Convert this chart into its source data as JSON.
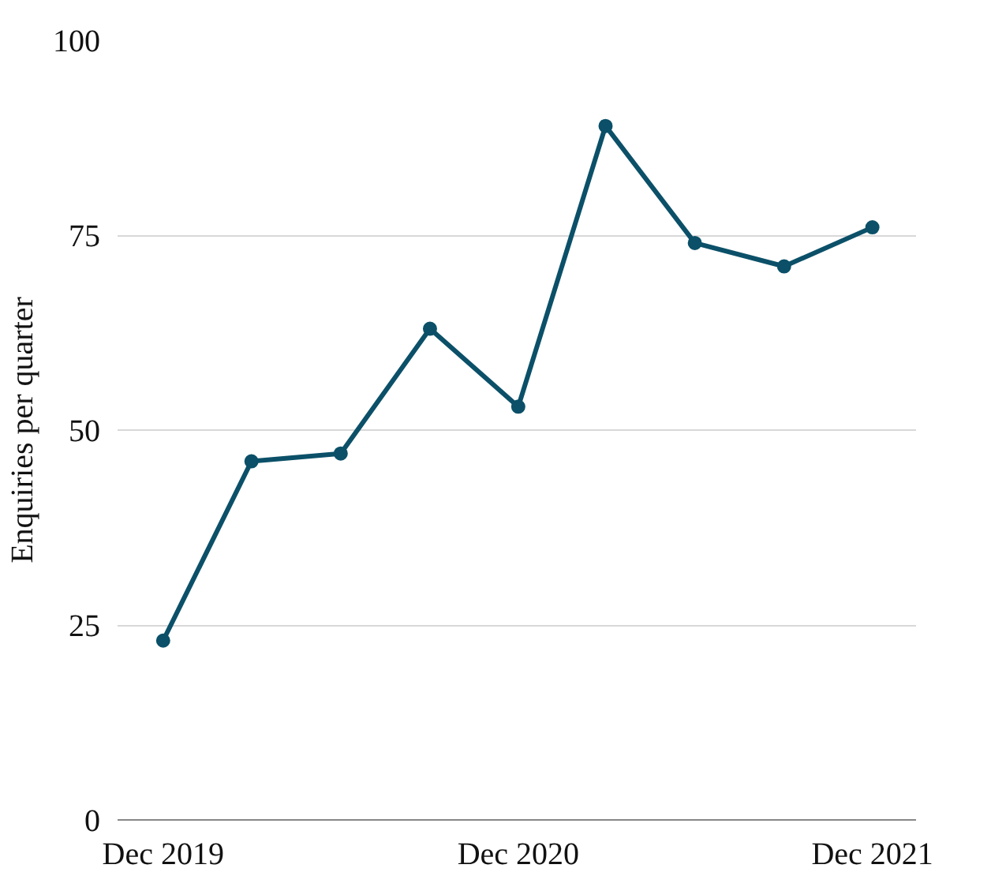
{
  "chart_data": {
    "type": "line",
    "ylabel": "Enquiries per quarter",
    "x": [
      "2019-12",
      "2020-03",
      "2020-06",
      "2020-09",
      "2020-12",
      "2021-03",
      "2021-06",
      "2021-09",
      "2021-12"
    ],
    "series": [
      {
        "color": "#0b5068",
        "values": [
          23,
          46,
          47,
          63,
          53,
          89,
          74,
          71,
          76
        ]
      }
    ],
    "xlim": [
      "2019-10-15",
      "2022-01-15"
    ],
    "xticks": [
      {
        "value": "2019-12",
        "label": "Dec 2019"
      },
      {
        "value": "2020-12",
        "label": "Dec 2020"
      },
      {
        "value": "2021-12",
        "label": "Dec 2021"
      }
    ],
    "ylim": [
      0,
      100
    ],
    "yticks": [
      0,
      25,
      50,
      75,
      100
    ],
    "grid": "y",
    "marker": "circle",
    "line_style": "solid"
  }
}
